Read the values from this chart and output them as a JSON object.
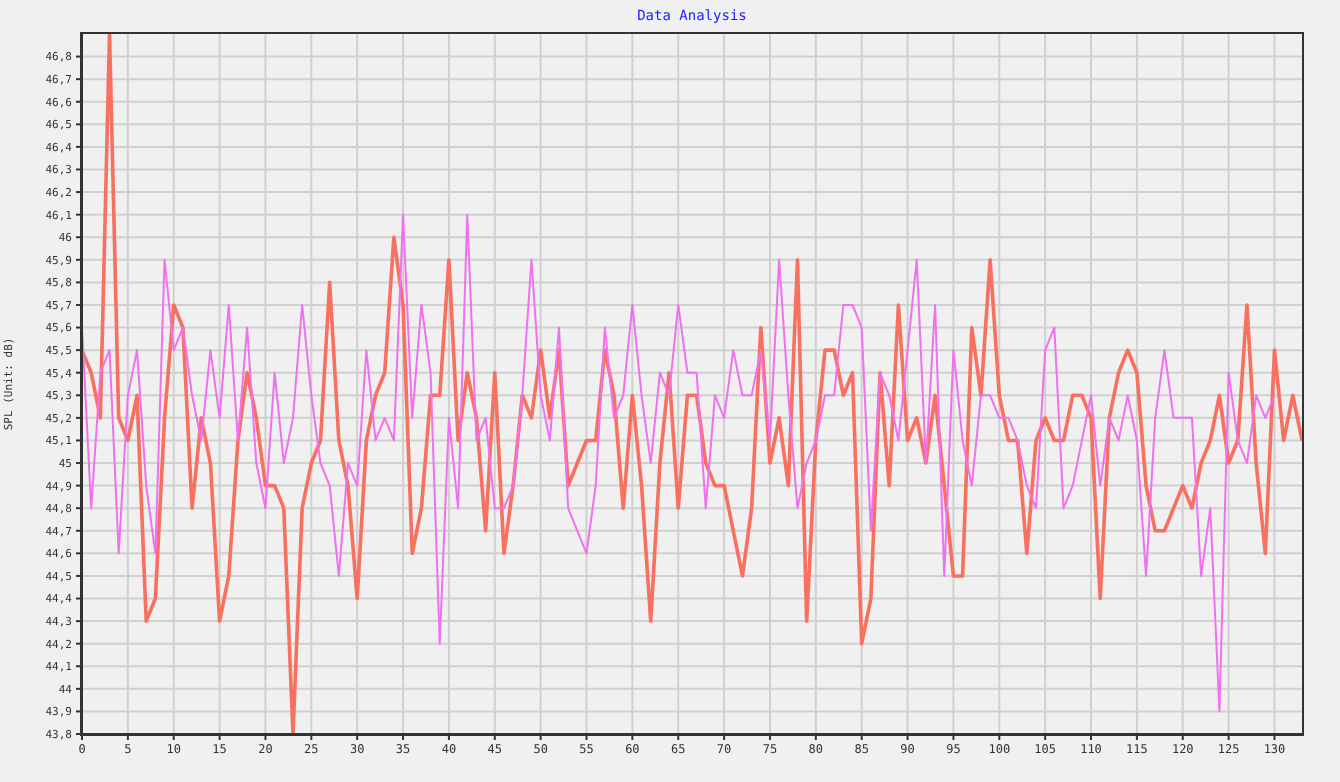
{
  "chart_data": {
    "type": "line",
    "title": "Data Analysis",
    "ylabel": "SPL  (Unit: dB)",
    "x": [
      0,
      1,
      2,
      3,
      4,
      5,
      6,
      7,
      8,
      9,
      10,
      11,
      12,
      13,
      14,
      15,
      16,
      17,
      18,
      19,
      20,
      21,
      22,
      23,
      24,
      25,
      26,
      27,
      28,
      29,
      30,
      31,
      32,
      33,
      34,
      35,
      36,
      37,
      38,
      39,
      40,
      41,
      42,
      43,
      44,
      45,
      46,
      47,
      48,
      49,
      50,
      51,
      52,
      53,
      54,
      55,
      56,
      57,
      58,
      59,
      60,
      61,
      62,
      63,
      64,
      65,
      66,
      67,
      68,
      69,
      70,
      71,
      72,
      73,
      74,
      75,
      76,
      77,
      78,
      79,
      80,
      81,
      82,
      83,
      84,
      85,
      86,
      87,
      88,
      89,
      90,
      91,
      92,
      93,
      94,
      95,
      96,
      97,
      98,
      99,
      100,
      101,
      102,
      103,
      104,
      105,
      106,
      107,
      108,
      109,
      110,
      111,
      112,
      113,
      114,
      115,
      116,
      117,
      118,
      119,
      120,
      121,
      122,
      123,
      124,
      125,
      126,
      127,
      128,
      129,
      130,
      131,
      132,
      133
    ],
    "series": [
      {
        "color": "#f87060",
        "values": [
          45.5,
          45.4,
          45.2,
          46.9,
          45.2,
          45.1,
          45.3,
          44.3,
          44.4,
          45.2,
          45.7,
          45.6,
          44.8,
          45.2,
          45.0,
          44.3,
          44.5,
          45.1,
          45.4,
          45.2,
          44.9,
          44.9,
          44.8,
          43.8,
          44.8,
          45.0,
          45.1,
          45.8,
          45.1,
          44.9,
          44.4,
          45.1,
          45.3,
          45.4,
          46.0,
          45.7,
          44.6,
          44.8,
          45.3,
          45.3,
          45.9,
          45.1,
          45.4,
          45.2,
          44.7,
          45.4,
          44.6,
          44.9,
          45.3,
          45.2,
          45.5,
          45.2,
          45.5,
          44.9,
          45.0,
          45.1,
          45.1,
          45.5,
          45.3,
          44.8,
          45.3,
          44.9,
          44.3,
          45.0,
          45.4,
          44.8,
          45.3,
          45.3,
          45.0,
          44.9,
          44.9,
          44.7,
          44.5,
          44.8,
          45.6,
          45.0,
          45.2,
          44.9,
          45.9,
          44.3,
          45.1,
          45.5,
          45.5,
          45.3,
          45.4,
          44.2,
          44.4,
          45.4,
          44.9,
          45.7,
          45.1,
          45.2,
          45.0,
          45.3,
          44.9,
          44.5,
          44.5,
          45.6,
          45.3,
          45.9,
          45.3,
          45.1,
          45.1,
          44.6,
          45.1,
          45.2,
          45.1,
          45.1,
          45.3,
          45.3,
          45.2,
          44.4,
          45.2,
          45.4,
          45.5,
          45.4,
          44.9,
          44.7,
          44.7,
          44.8,
          44.9,
          44.8,
          45.0,
          45.1,
          45.3,
          45.0,
          45.1,
          45.7,
          45.0,
          44.6,
          45.5,
          45.1,
          45.3,
          45.1
        ]
      },
      {
        "color": "#f070f0",
        "values": [
          45.6,
          44.8,
          45.4,
          45.5,
          44.6,
          45.3,
          45.5,
          44.9,
          44.6,
          45.9,
          45.5,
          45.6,
          45.3,
          45.1,
          45.5,
          45.2,
          45.7,
          45.1,
          45.6,
          45.0,
          44.8,
          45.4,
          45.0,
          45.2,
          45.7,
          45.3,
          45.0,
          44.9,
          44.5,
          45.0,
          44.9,
          45.5,
          45.1,
          45.2,
          45.1,
          46.1,
          45.2,
          45.7,
          45.4,
          44.2,
          45.2,
          44.8,
          46.1,
          45.1,
          45.2,
          44.8,
          44.8,
          44.9,
          45.3,
          45.9,
          45.3,
          45.1,
          45.6,
          44.8,
          44.7,
          44.6,
          44.9,
          45.6,
          45.2,
          45.3,
          45.7,
          45.3,
          45.0,
          45.4,
          45.3,
          45.7,
          45.4,
          45.4,
          44.8,
          45.3,
          45.2,
          45.5,
          45.3,
          45.3,
          45.5,
          45.1,
          45.9,
          45.3,
          44.8,
          45.0,
          45.1,
          45.3,
          45.3,
          45.7,
          45.7,
          45.6,
          44.7,
          45.4,
          45.3,
          45.1,
          45.5,
          45.9,
          45.0,
          45.7,
          44.5,
          45.5,
          45.1,
          44.9,
          45.3,
          45.3,
          45.2,
          45.2,
          45.1,
          44.9,
          44.8,
          45.5,
          45.6,
          44.8,
          44.9,
          45.1,
          45.3,
          44.9,
          45.2,
          45.1,
          45.3,
          45.1,
          44.5,
          45.2,
          45.5,
          45.2,
          45.2,
          45.2,
          44.5,
          44.8,
          43.9,
          45.4,
          45.1,
          45.0,
          45.3,
          45.2,
          45.3,
          null,
          null,
          null
        ]
      }
    ],
    "xlim": [
      0,
      133
    ],
    "xticks": [
      0,
      5,
      10,
      15,
      20,
      25,
      30,
      35,
      40,
      45,
      50,
      55,
      60,
      65,
      70,
      75,
      80,
      85,
      90,
      95,
      100,
      105,
      110,
      115,
      120,
      125,
      130
    ],
    "ylim": [
      43.8,
      46.9
    ],
    "yticks": [
      {
        "value": 43.8,
        "label": "43,8"
      },
      {
        "value": 43.9,
        "label": "43,9"
      },
      44,
      {
        "value": 44.1,
        "label": "44,1"
      },
      {
        "value": 44.2,
        "label": "44,2"
      },
      {
        "value": 44.3,
        "label": "44,3"
      },
      {
        "value": 44.4,
        "label": "44,4"
      },
      {
        "value": 44.5,
        "label": "44,5"
      },
      {
        "value": 44.6,
        "label": "44,6"
      },
      {
        "value": 44.7,
        "label": "44,7"
      },
      {
        "value": 44.8,
        "label": "44,8"
      },
      {
        "value": 44.9,
        "label": "44,9"
      },
      45,
      {
        "value": 45.1,
        "label": "45,1"
      },
      {
        "value": 45.2,
        "label": "45,2"
      },
      {
        "value": 45.3,
        "label": "45,3"
      },
      {
        "value": 45.4,
        "label": "45,4"
      },
      {
        "value": 45.5,
        "label": "45,5"
      },
      {
        "value": 45.6,
        "label": "45,6"
      },
      {
        "value": 45.7,
        "label": "45,7"
      },
      {
        "value": 45.8,
        "label": "45,8"
      },
      {
        "value": 45.9,
        "label": "45,9"
      },
      46,
      {
        "value": 46.1,
        "label": "46,1"
      },
      {
        "value": 46.2,
        "label": "46,2"
      },
      {
        "value": 46.3,
        "label": "46,3"
      },
      {
        "value": 46.4,
        "label": "46,4"
      },
      {
        "value": 46.5,
        "label": "46,5"
      },
      {
        "value": 46.6,
        "label": "46,6"
      },
      {
        "value": 46.7,
        "label": "46,7"
      },
      {
        "value": 46.8,
        "label": "46,8"
      }
    ],
    "grid": true,
    "legend": false,
    "marker": "none",
    "line_style": "solid"
  }
}
